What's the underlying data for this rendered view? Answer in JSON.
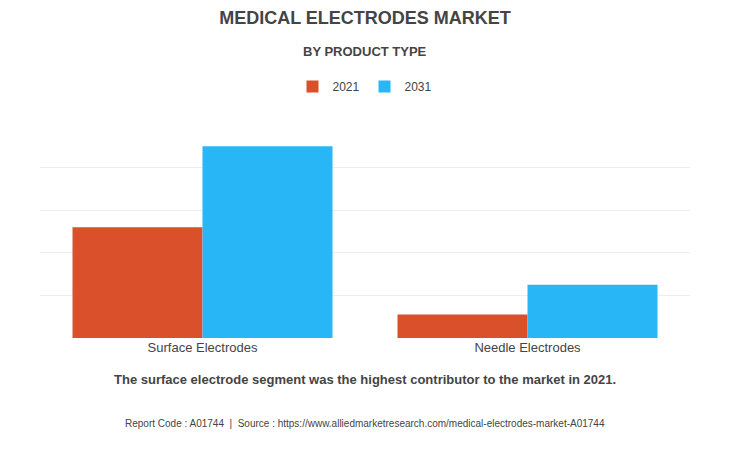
{
  "chart_data": {
    "type": "bar",
    "title": "MEDICAL ELECTRODES MARKET",
    "subtitle": "BY PRODUCT TYPE",
    "categories": [
      "Surface Electrodes",
      "Needle Electrodes"
    ],
    "series": [
      {
        "name": "2021",
        "color": "#d9502a",
        "values": [
          52,
          11
        ]
      },
      {
        "name": "2031",
        "color": "#29b6f6",
        "values": [
          90,
          25
        ]
      }
    ],
    "ylim": [
      0,
      100
    ],
    "yticks": [
      0,
      20,
      40,
      60,
      80,
      100
    ],
    "grid": true,
    "legend": "top",
    "tick_labels": "x",
    "annotations": [
      "The surface electrode segment was the highest contributor to the market in 2021.",
      "Report Code : A01744  |  Source : https://www.alliedmarketresearch.com/medical-electrodes-market-A01744"
    ]
  }
}
